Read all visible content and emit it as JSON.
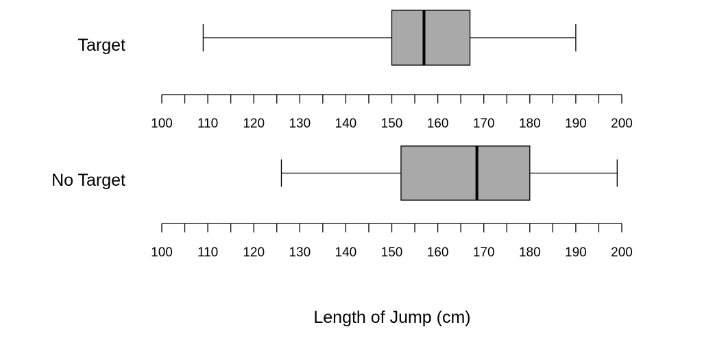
{
  "chart_data": {
    "type": "boxplot",
    "orientation": "horizontal",
    "xlabel": "Length of Jump (cm)",
    "xlim": [
      100,
      200
    ],
    "major_ticks": [
      100,
      110,
      120,
      130,
      140,
      150,
      160,
      170,
      180,
      190,
      200
    ],
    "minor_tick_step": 5,
    "series": [
      {
        "name": "Target",
        "min": 109,
        "q1": 150,
        "median": 157,
        "q3": 167,
        "max": 190
      },
      {
        "name": "No Target",
        "min": 126,
        "q1": 152,
        "median": 168.5,
        "q3": 180,
        "max": 199
      }
    ],
    "colors": {
      "box_fill": "#a9a9a9",
      "stroke": "#000000"
    }
  }
}
